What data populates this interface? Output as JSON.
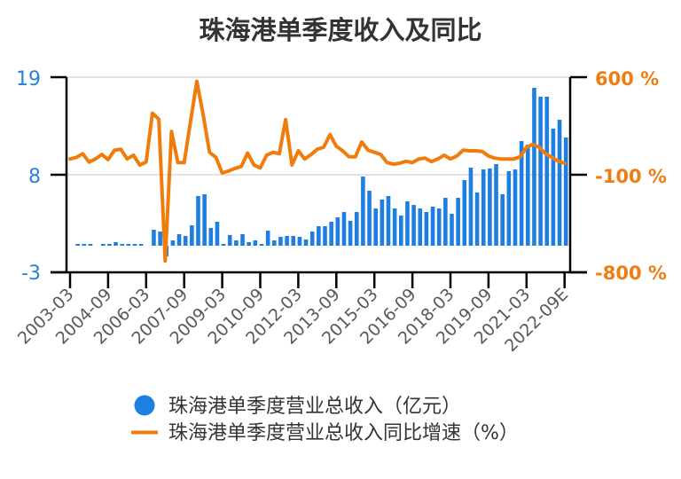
{
  "title": "珠海港单季度收入及同比",
  "legend": {
    "revenue_label": "珠海港单季度营业总收入（亿元）",
    "growth_label": "珠海港单季度营业总收入同比增速（%）"
  },
  "colors": {
    "bar": "#1e7fe3",
    "line": "#f07c0c",
    "left_axis_text": "#2b80d9",
    "right_axis_text": "#f07d13",
    "title": "#333333",
    "gridline": "#e3e3e3"
  },
  "chart_data": {
    "type": "bar+line",
    "title": "珠海港单季度收入及同比",
    "xlabel": "",
    "ylabel_left": "",
    "ylabel_right": "",
    "grid": true,
    "legend_position": "bottom",
    "y_left": {
      "min": -3,
      "max": 19,
      "ticks": [
        19,
        8,
        -3
      ],
      "tick_labels": [
        "19",
        "8",
        "-3"
      ]
    },
    "y_right": {
      "min": -800,
      "max": 600,
      "ticks": [
        600,
        -100,
        -800
      ],
      "tick_labels": [
        "600 %",
        "-100 %",
        "-800 %"
      ]
    },
    "x_tick_indices": [
      0,
      6,
      12,
      18,
      24,
      30,
      36,
      42,
      48,
      54,
      60,
      66,
      72,
      78
    ],
    "x_tick_labels": [
      "2003-03",
      "2004-09",
      "2006-03",
      "2007-09",
      "2009-03",
      "2010-09",
      "2012-03",
      "2013-09",
      "2015-03",
      "2016-09",
      "2018-03",
      "2019-09",
      "2021-03",
      "2022-09E"
    ],
    "categories": [
      "2003-03",
      "2003-06",
      "2003-09",
      "2003-12",
      "2004-03",
      "2004-06",
      "2004-09",
      "2004-12",
      "2005-03",
      "2005-06",
      "2005-09",
      "2005-12",
      "2006-03",
      "2006-06",
      "2006-09",
      "2006-12",
      "2007-03",
      "2007-06",
      "2007-09",
      "2007-12",
      "2008-03",
      "2008-06",
      "2008-09",
      "2008-12",
      "2009-03",
      "2009-06",
      "2009-09",
      "2009-12",
      "2010-03",
      "2010-06",
      "2010-09",
      "2010-12",
      "2011-03",
      "2011-06",
      "2011-09",
      "2011-12",
      "2012-03",
      "2012-06",
      "2012-09",
      "2012-12",
      "2013-03",
      "2013-06",
      "2013-09",
      "2013-12",
      "2014-03",
      "2014-06",
      "2014-09",
      "2014-12",
      "2015-03",
      "2015-06",
      "2015-09",
      "2015-12",
      "2016-03",
      "2016-06",
      "2016-09",
      "2016-12",
      "2017-03",
      "2017-06",
      "2017-09",
      "2017-12",
      "2018-03",
      "2018-06",
      "2018-09",
      "2018-12",
      "2019-03",
      "2019-06",
      "2019-09",
      "2019-12",
      "2020-03",
      "2020-06",
      "2020-09",
      "2020-12",
      "2021-03",
      "2021-06",
      "2021-09",
      "2021-12",
      "2022-03",
      "2022-06",
      "2022-09E"
    ],
    "series": [
      {
        "name": "珠海港单季度营业总收入（亿元）",
        "type": "bar",
        "axis": "left",
        "values": [
          null,
          0.2,
          0.2,
          0.2,
          null,
          0.2,
          0.2,
          0.4,
          0.2,
          0.2,
          0.2,
          0.2,
          null,
          1.8,
          1.6,
          -1.2,
          0.6,
          1.3,
          1.1,
          2.3,
          5.6,
          5.8,
          2.0,
          2.7,
          0.2,
          1.2,
          0.6,
          1.3,
          0.4,
          0.6,
          0.2,
          1.7,
          0.6,
          1.0,
          1.1,
          1.1,
          1.0,
          0.7,
          1.6,
          2.2,
          2.2,
          2.7,
          3.2,
          3.8,
          2.8,
          3.8,
          7.8,
          6.2,
          4.2,
          5.2,
          5.6,
          4.2,
          3.4,
          5.0,
          4.6,
          4.2,
          3.8,
          4.4,
          4.2,
          5.4,
          3.6,
          5.4,
          7.4,
          8.8,
          6.0,
          8.6,
          8.7,
          9.2,
          5.8,
          8.4,
          8.6,
          11.8,
          11.4,
          17.8,
          16.8,
          16.8,
          13.2,
          14.2,
          12.2
        ]
      },
      {
        "name": "珠海港单季度营业总收入同比增速（%）",
        "type": "line",
        "axis": "right",
        "values": [
          13,
          25,
          51,
          -9,
          13,
          46,
          8,
          76,
          83,
          13,
          40,
          -30,
          -9,
          341,
          299,
          -719,
          210,
          -13,
          -13,
          280,
          570,
          328,
          61,
          25,
          -87,
          -73,
          -55,
          -41,
          55,
          -30,
          -51,
          40,
          61,
          51,
          295,
          -30,
          72,
          13,
          44,
          83,
          97,
          188,
          104,
          72,
          29,
          29,
          135,
          76,
          61,
          46,
          -13,
          -24,
          -17,
          -3,
          -13,
          13,
          19,
          -6,
          13,
          40,
          13,
          34,
          76,
          72,
          72,
          67,
          34,
          19,
          13,
          13,
          13,
          29,
          97,
          118,
          97,
          51,
          25,
          -3,
          -17
        ]
      }
    ]
  }
}
